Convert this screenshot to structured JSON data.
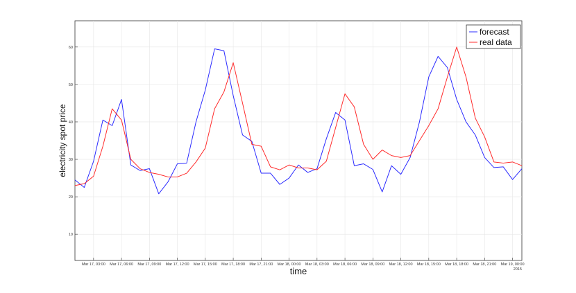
{
  "chart_data": {
    "type": "line",
    "xlabel": "time",
    "ylabel": "electricity spot price",
    "year_label": "2015",
    "ylim": [
      3,
      67
    ],
    "yticks": [
      10,
      20,
      30,
      40,
      50,
      60
    ],
    "grid": true,
    "legend_position": "top-right",
    "x_tick_labels": [
      "Mar 17, 03:00",
      "Mar 17, 06:00",
      "Mar 17, 09:00",
      "Mar 17, 12:00",
      "Mar 17, 15:00",
      "Mar 17, 18:00",
      "Mar 17, 21:00",
      "Mar 18, 00:00",
      "Mar 18, 03:00",
      "Mar 18, 06:00",
      "Mar 18, 09:00",
      "Mar 18, 12:00",
      "Mar 18, 15:00",
      "Mar 18, 18:00",
      "Mar 18, 21:00",
      "Mar 19, 00:00"
    ],
    "x_start": "Mar 17, 01:00",
    "x_end": "Mar 19, 01:00",
    "series": [
      {
        "name": "forecast",
        "color": "#2b2bff",
        "values": [
          24.5,
          22.5,
          29.5,
          40.5,
          39,
          46,
          28.5,
          27,
          27.5,
          20.8,
          24,
          28.8,
          29,
          40,
          48.5,
          59.5,
          59,
          47,
          36.5,
          34.8,
          26.3,
          26.3,
          23.3,
          25,
          28.5,
          26.5,
          27.5,
          35.5,
          42.5,
          40.5,
          28.3,
          28.8,
          27.3,
          21.3,
          28.3,
          26,
          30.5,
          40,
          52,
          57.5,
          54.5,
          46,
          40,
          36.5,
          30.5,
          27.8,
          28,
          24.6,
          27.5
        ]
      },
      {
        "name": "real data",
        "color": "#ff2b2b",
        "values": [
          23,
          23.5,
          25.5,
          33.5,
          43.5,
          40.5,
          30,
          27.5,
          26.5,
          26,
          25.3,
          25.3,
          26.3,
          29.3,
          33,
          43.5,
          48,
          55.8,
          45,
          34,
          33.5,
          28,
          27.2,
          28.5,
          27.7,
          27.7,
          27.2,
          29.5,
          38.5,
          47.5,
          44,
          34,
          30,
          32.5,
          31,
          30.5,
          31,
          35,
          39,
          43.5,
          52,
          60,
          52,
          41,
          36,
          29.3,
          29,
          29.3,
          28.3
        ]
      }
    ]
  }
}
